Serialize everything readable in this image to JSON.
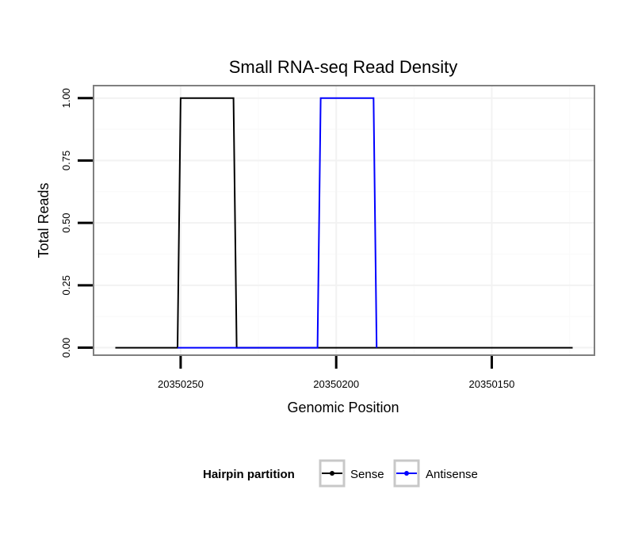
{
  "chart_data": {
    "type": "line",
    "title": "Small RNA-seq Read Density",
    "xlabel": "Genomic Position",
    "ylabel": "Total Reads",
    "x_reversed": true,
    "xlim": [
      20350278,
      20350117
    ],
    "ylim": [
      -0.03,
      1.05
    ],
    "x_ticks": [
      20350250,
      20350200,
      20350150
    ],
    "x_tick_labels": [
      "20350250",
      "20350200",
      "20350150"
    ],
    "y_ticks": [
      0,
      0.25,
      0.5,
      0.75,
      1.0
    ],
    "y_tick_labels": [
      "0.00",
      "0.25",
      "0.50",
      "0.75",
      "1.00"
    ],
    "grid": true,
    "legend": {
      "title": "Hairpin partition",
      "position": "bottom",
      "entries": [
        "Sense",
        "Antisense"
      ]
    },
    "series": [
      {
        "name": "Sense",
        "color": "#000000",
        "x": [
          20350271,
          20350251,
          20350250,
          20350233,
          20350232,
          20350124
        ],
        "y": [
          0,
          0,
          1,
          1,
          0,
          0
        ]
      },
      {
        "name": "Antisense",
        "color": "#0000ff",
        "x": [
          20350251,
          20350206,
          20350205,
          20350188,
          20350187
        ],
        "y": [
          0,
          0,
          1,
          1,
          0
        ]
      }
    ]
  }
}
